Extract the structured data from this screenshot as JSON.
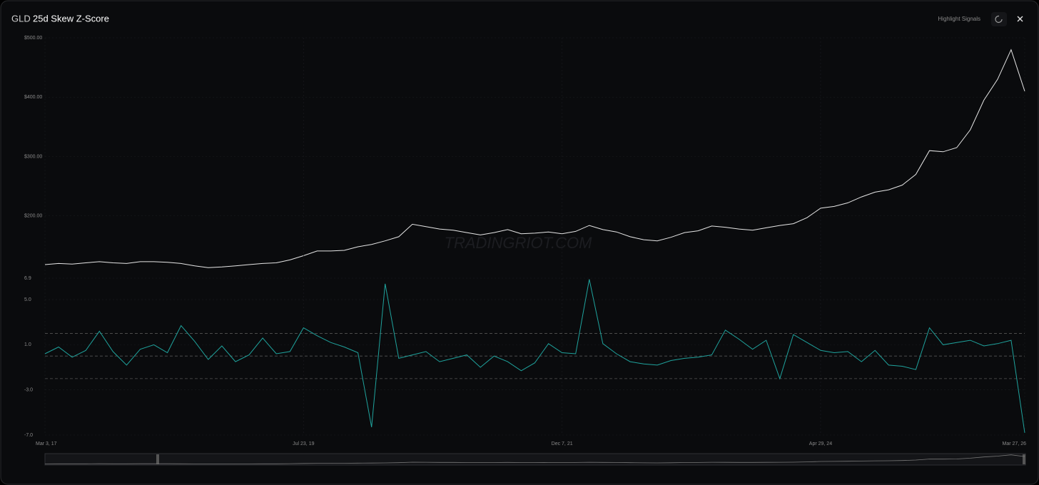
{
  "header": {
    "symbol": "GLD",
    "title": "25d Skew Z-Score",
    "highlight_label": "Highlight Signals"
  },
  "chart_data": [
    {
      "type": "line",
      "color": "#e6e6e6",
      "watermark": "TRADINGRIOT.COM",
      "grid": true,
      "ylim": [
        100,
        500
      ],
      "yticks": [
        {
          "value": 200,
          "label": "$200.00"
        },
        {
          "value": 300,
          "label": "$300.00"
        },
        {
          "value": 400,
          "label": "$400.00"
        },
        {
          "value": 500,
          "label": "$500.00"
        }
      ],
      "values": [
        118,
        120,
        119,
        121,
        123,
        121,
        120,
        123,
        123,
        122,
        120,
        116,
        113,
        114,
        116,
        118,
        120,
        121,
        126,
        133,
        141,
        141,
        142,
        148,
        152,
        158,
        165,
        186,
        182,
        178,
        176,
        172,
        168,
        172,
        177,
        170,
        171,
        173,
        170,
        174,
        184,
        177,
        173,
        165,
        160,
        158,
        164,
        172,
        175,
        183,
        181,
        178,
        176,
        180,
        184,
        187,
        197,
        213,
        216,
        222,
        232,
        240,
        244,
        252,
        270,
        310,
        308,
        315,
        345,
        395,
        430,
        480,
        410
      ]
    },
    {
      "type": "line",
      "color": "#1fa39d",
      "grid": true,
      "ylim": [
        -7,
        6.9
      ],
      "yticks": [
        {
          "value": -7,
          "label": "-7.0"
        },
        {
          "value": -3,
          "label": "-3.0"
        },
        {
          "value": 1,
          "label": "1.0"
        },
        {
          "value": 5,
          "label": "5.0"
        },
        6.9
      ],
      "thresholds": [
        2,
        0,
        -2
      ],
      "categories": [
        "Mar 3, 17",
        null,
        null,
        null,
        null,
        null,
        null,
        null,
        null,
        null,
        null,
        null,
        null,
        null,
        null,
        null,
        null,
        null,
        null,
        "Jul 23, 19",
        null,
        null,
        null,
        null,
        null,
        null,
        null,
        null,
        null,
        null,
        null,
        null,
        null,
        null,
        null,
        null,
        null,
        null,
        "Dec 7, 21",
        null,
        null,
        null,
        null,
        null,
        null,
        null,
        null,
        null,
        null,
        null,
        null,
        null,
        null,
        null,
        null,
        null,
        null,
        "Apr 29, 24",
        null,
        null,
        null,
        null,
        null,
        null,
        null,
        null,
        null,
        null,
        null,
        null,
        null,
        null,
        "Mar 27, 26"
      ],
      "values": [
        0.2,
        0.8,
        -0.1,
        0.5,
        2.2,
        0.4,
        -0.8,
        0.6,
        1.0,
        0.3,
        2.7,
        1.3,
        -0.3,
        0.9,
        -0.5,
        0.1,
        1.6,
        0.2,
        0.4,
        2.5,
        1.8,
        1.2,
        0.8,
        0.3,
        -6.3,
        6.4,
        -0.2,
        0.1,
        0.4,
        -0.5,
        -0.2,
        0.1,
        -1.0,
        0.0,
        -0.5,
        -1.3,
        -0.6,
        1.1,
        0.3,
        0.2,
        6.8,
        1.1,
        0.2,
        -0.5,
        -0.7,
        -0.8,
        -0.4,
        -0.2,
        -0.1,
        0.1,
        2.3,
        1.5,
        0.6,
        1.4,
        -2.0,
        1.9,
        1.2,
        0.5,
        0.3,
        0.4,
        -0.5,
        0.5,
        -0.8,
        -0.9,
        -1.2,
        2.5,
        1.0,
        1.2,
        1.4,
        0.9,
        1.1,
        1.4,
        -6.8
      ]
    }
  ]
}
